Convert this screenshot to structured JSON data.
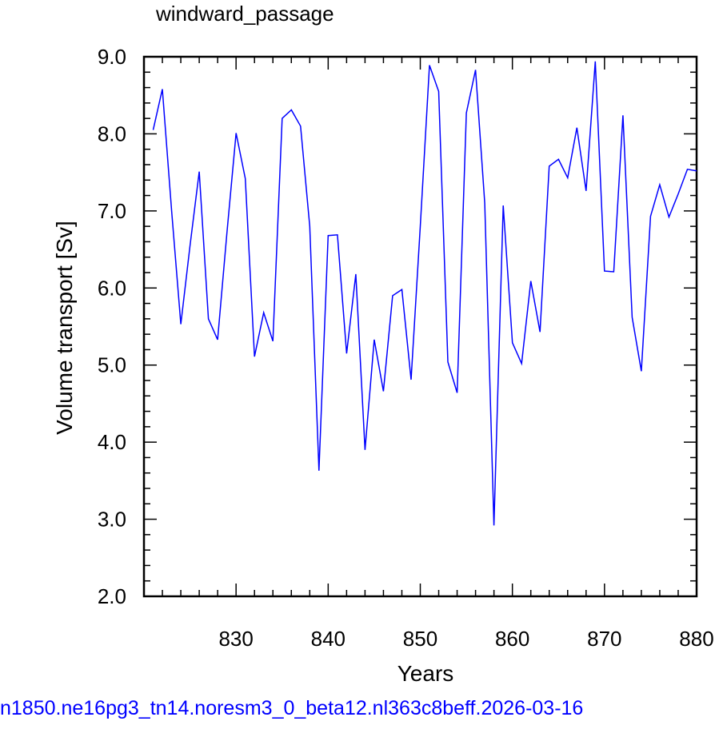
{
  "chart_data": {
    "type": "line",
    "title": "windward_passage",
    "xlabel": "Years",
    "ylabel": "Volume transport [Sv]",
    "xlim": [
      820,
      880
    ],
    "ylim": [
      2.0,
      9.0
    ],
    "x_ticks": [
      830,
      840,
      850,
      860,
      870,
      880
    ],
    "y_ticks": [
      "2.0",
      "3.0",
      "4.0",
      "5.0",
      "6.0",
      "7.0",
      "8.0",
      "9.0"
    ],
    "grid": false,
    "series": [
      {
        "color": "#0000ff",
        "x": [
          821,
          822,
          823,
          824,
          825,
          826,
          827,
          828,
          829,
          830,
          831,
          832,
          833,
          834,
          835,
          836,
          837,
          838,
          839,
          840,
          841,
          842,
          843,
          844,
          845,
          846,
          847,
          848,
          849,
          850,
          851,
          852,
          853,
          854,
          855,
          856,
          857,
          858,
          859,
          860,
          861,
          862,
          863,
          864,
          865,
          866,
          867,
          868,
          869,
          870,
          871,
          872,
          873,
          874,
          875,
          876,
          877,
          878,
          879,
          880
        ],
        "values": [
          8.05,
          8.58,
          7.0,
          5.53,
          6.55,
          7.51,
          5.6,
          5.33,
          6.7,
          8.01,
          7.42,
          5.11,
          5.68,
          5.31,
          8.2,
          8.31,
          8.1,
          6.8,
          3.63,
          6.68,
          6.69,
          5.15,
          6.18,
          3.9,
          5.33,
          4.66,
          5.9,
          5.98,
          4.81,
          6.8,
          8.89,
          8.55,
          5.04,
          4.64,
          8.27,
          8.83,
          7.1,
          2.92,
          7.07,
          5.29,
          5.02,
          6.09,
          5.43,
          7.58,
          7.67,
          7.43,
          8.08,
          7.26,
          8.94,
          6.22,
          6.21,
          8.24,
          5.62,
          4.92,
          6.93,
          7.34,
          6.92,
          7.22,
          7.54,
          7.52
        ]
      }
    ]
  },
  "footer": "n1850.ne16pg3_tn14.noresm3_0_beta12.nl363c8beff.2026-03-16"
}
